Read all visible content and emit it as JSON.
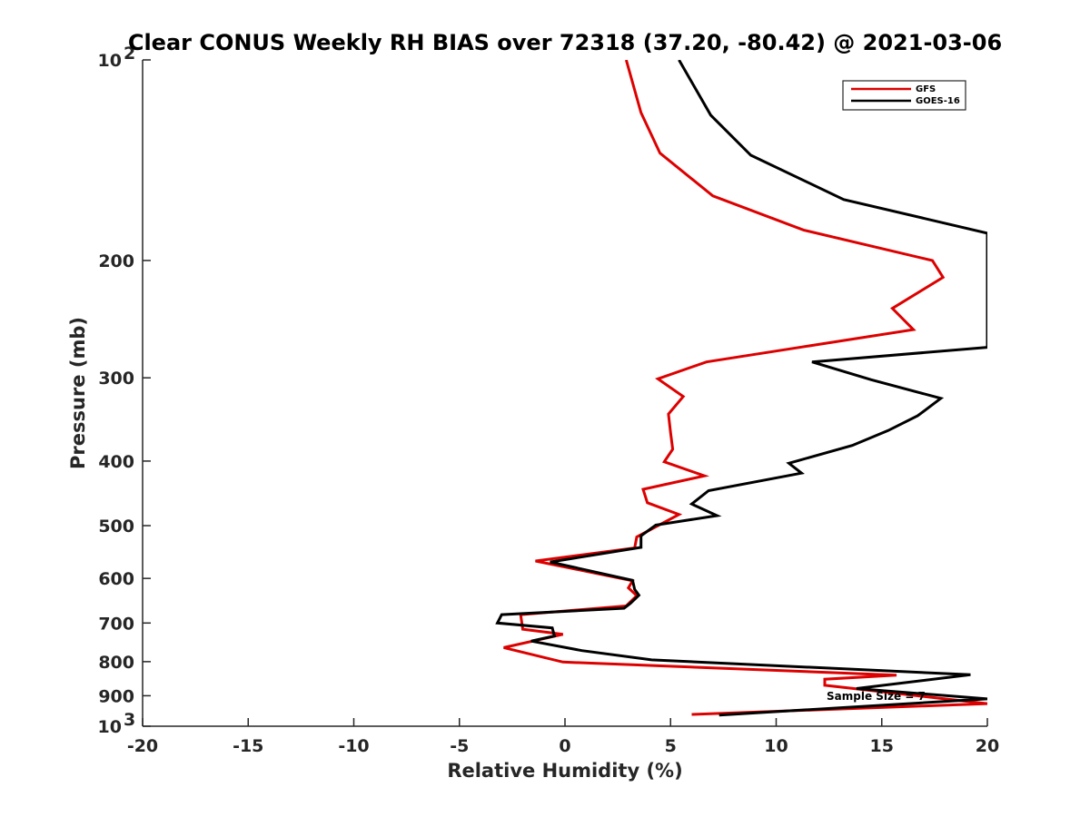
{
  "chart_data": {
    "type": "line",
    "title": "Clear CONUS Weekly RH BIAS over 72318 (37.20, -80.42) @ 2021-03-06",
    "xlabel": "Relative Humidity (%)",
    "ylabel": "Pressure (mb)",
    "xlim": [
      -20,
      20
    ],
    "ylim": [
      100,
      1000
    ],
    "yscale": "log",
    "y_reversed": true,
    "grid": false,
    "legend_position": "top-right",
    "x_ticks": [
      -20,
      -15,
      -10,
      -5,
      0,
      5,
      10,
      15,
      20
    ],
    "x_tick_labels": [
      "-20",
      "-15",
      "-10",
      "-5",
      "0",
      "5",
      "10",
      "15",
      "20"
    ],
    "y_ticks": [
      {
        "value": 100,
        "label": "10",
        "exponent": "2"
      },
      {
        "value": 200,
        "label": "200"
      },
      {
        "value": 300,
        "label": "300"
      },
      {
        "value": 400,
        "label": "400"
      },
      {
        "value": 500,
        "label": "500"
      },
      {
        "value": 600,
        "label": "600"
      },
      {
        "value": 700,
        "label": "700"
      },
      {
        "value": 800,
        "label": "800"
      },
      {
        "value": 900,
        "label": "900"
      },
      {
        "value": 1000,
        "label": "10",
        "exponent": "3"
      }
    ],
    "series": [
      {
        "name": "GFS",
        "color": "#dd0000",
        "points": [
          {
            "x": 2.9,
            "y": 100
          },
          {
            "x": 3.6,
            "y": 120
          },
          {
            "x": 4.5,
            "y": 138
          },
          {
            "x": 7.0,
            "y": 160
          },
          {
            "x": 11.3,
            "y": 180
          },
          {
            "x": 17.4,
            "y": 200
          },
          {
            "x": 17.9,
            "y": 212
          },
          {
            "x": 15.5,
            "y": 236
          },
          {
            "x": 16.5,
            "y": 254
          },
          {
            "x": 6.7,
            "y": 284
          },
          {
            "x": 4.4,
            "y": 301
          },
          {
            "x": 5.6,
            "y": 320
          },
          {
            "x": 4.9,
            "y": 340
          },
          {
            "x": 5.0,
            "y": 363
          },
          {
            "x": 5.1,
            "y": 384
          },
          {
            "x": 4.7,
            "y": 401
          },
          {
            "x": 6.6,
            "y": 421
          },
          {
            "x": 3.7,
            "y": 441
          },
          {
            "x": 3.9,
            "y": 462
          },
          {
            "x": 5.4,
            "y": 481
          },
          {
            "x": 3.4,
            "y": 520
          },
          {
            "x": 3.3,
            "y": 540
          },
          {
            "x": -1.4,
            "y": 565
          },
          {
            "x": 3.2,
            "y": 605
          },
          {
            "x": 3.0,
            "y": 620
          },
          {
            "x": 3.4,
            "y": 637
          },
          {
            "x": 2.9,
            "y": 660
          },
          {
            "x": -2.1,
            "y": 680
          },
          {
            "x": -2.0,
            "y": 715
          },
          {
            "x": -0.1,
            "y": 728
          },
          {
            "x": -2.9,
            "y": 762
          },
          {
            "x": -0.1,
            "y": 801
          },
          {
            "x": 15.7,
            "y": 838
          },
          {
            "x": 12.3,
            "y": 850
          },
          {
            "x": 12.3,
            "y": 868
          },
          {
            "x": 20.0,
            "y": 925
          },
          {
            "x": 6.0,
            "y": 960
          }
        ]
      },
      {
        "name": "GOES-16",
        "color": "#000000",
        "points": [
          {
            "x": 5.4,
            "y": 100
          },
          {
            "x": 6.9,
            "y": 121
          },
          {
            "x": 8.8,
            "y": 139
          },
          {
            "x": 13.2,
            "y": 162
          },
          {
            "x": 20.0,
            "y": 182
          },
          {
            "x": 20.0,
            "y": 270
          },
          {
            "x": 11.7,
            "y": 284
          },
          {
            "x": 14.5,
            "y": 302
          },
          {
            "x": 17.8,
            "y": 322
          },
          {
            "x": 16.7,
            "y": 342
          },
          {
            "x": 15.3,
            "y": 360
          },
          {
            "x": 13.6,
            "y": 379
          },
          {
            "x": 10.6,
            "y": 403
          },
          {
            "x": 11.2,
            "y": 417
          },
          {
            "x": 6.8,
            "y": 443
          },
          {
            "x": 6.0,
            "y": 464
          },
          {
            "x": 7.2,
            "y": 483
          },
          {
            "x": 4.3,
            "y": 499
          },
          {
            "x": 3.6,
            "y": 518
          },
          {
            "x": 3.6,
            "y": 539
          },
          {
            "x": -0.7,
            "y": 567
          },
          {
            "x": 3.2,
            "y": 604
          },
          {
            "x": 3.3,
            "y": 623
          },
          {
            "x": 3.5,
            "y": 636
          },
          {
            "x": 3.1,
            "y": 654
          },
          {
            "x": 2.8,
            "y": 665
          },
          {
            "x": -3.0,
            "y": 680
          },
          {
            "x": -3.2,
            "y": 700
          },
          {
            "x": -0.6,
            "y": 712
          },
          {
            "x": -0.5,
            "y": 732
          },
          {
            "x": -1.6,
            "y": 745
          },
          {
            "x": 0.8,
            "y": 770
          },
          {
            "x": 4.1,
            "y": 795
          },
          {
            "x": 19.2,
            "y": 837
          },
          {
            "x": 13.8,
            "y": 878
          },
          {
            "x": 20.0,
            "y": 910
          },
          {
            "x": 7.3,
            "y": 962
          }
        ]
      }
    ],
    "annotations": [
      "Sample Size = 7"
    ]
  }
}
